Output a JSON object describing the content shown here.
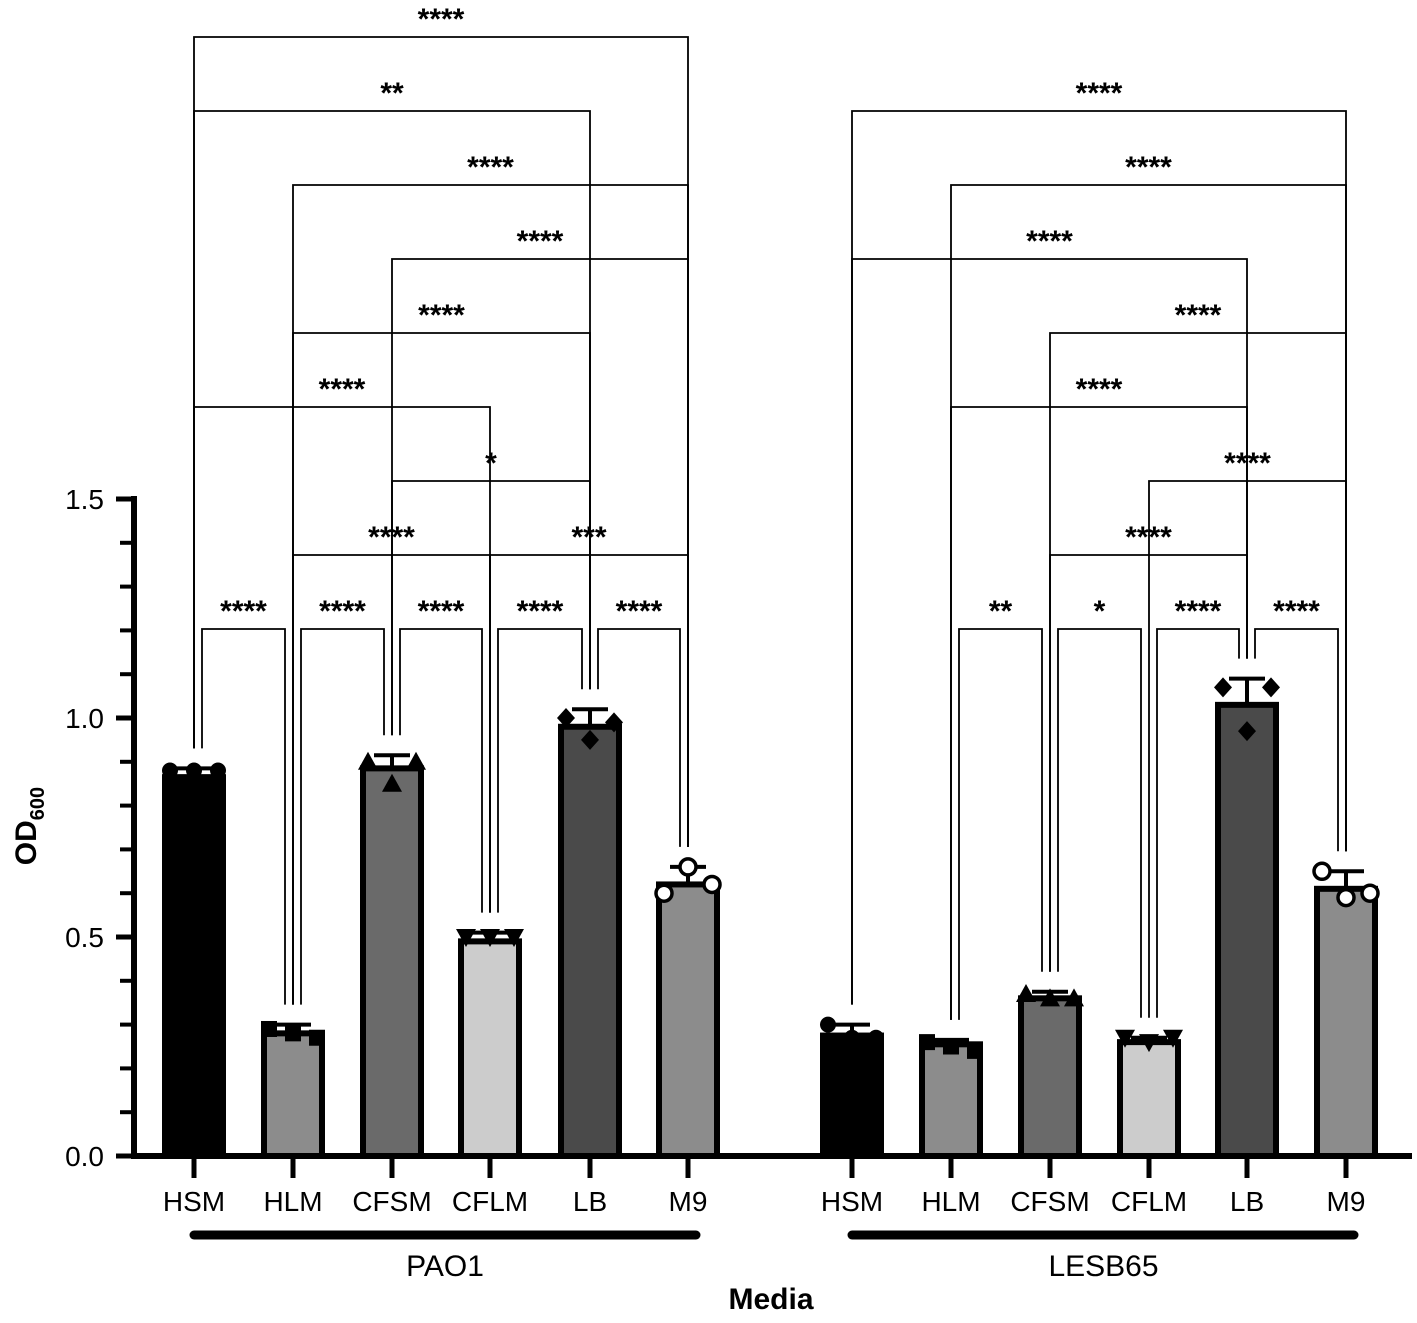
{
  "chart_data": {
    "type": "bar",
    "xlabel": "Media",
    "ylabel": "OD",
    "ylabel_sub": "600",
    "ylim": [
      0,
      1.5
    ],
    "yticks": [
      "0.0",
      "0.5",
      "1.0",
      "1.5"
    ],
    "grid": false,
    "groups": [
      {
        "name": "PAO1",
        "bars": [
          {
            "category": "HSM",
            "value": 0.865,
            "sd": 0.02,
            "color": "#000000",
            "marker": "circle",
            "points": [
              0.88,
              0.88,
              0.88
            ]
          },
          {
            "category": "HLM",
            "value": 0.28,
            "sd": 0.02,
            "color": "#8c8c8c",
            "marker": "square",
            "points": [
              0.29,
              0.28,
              0.27
            ]
          },
          {
            "category": "CFSM",
            "value": 0.885,
            "sd": 0.03,
            "color": "#6a6a6a",
            "marker": "triangle-up",
            "points": [
              0.9,
              0.85,
              0.9
            ]
          },
          {
            "category": "CFLM",
            "value": 0.49,
            "sd": 0.02,
            "color": "#cccccc",
            "marker": "triangle-down",
            "points": [
              0.5,
              0.5,
              0.5
            ]
          },
          {
            "category": "LB",
            "value": 0.98,
            "sd": 0.04,
            "color": "#4a4a4a",
            "marker": "diamond",
            "points": [
              1.0,
              0.95,
              0.99
            ]
          },
          {
            "category": "M9",
            "value": 0.62,
            "sd": 0.04,
            "color": "#8c8c8c",
            "marker": "circle-open",
            "points": [
              0.6,
              0.66,
              0.62
            ]
          }
        ],
        "comparisons": [
          {
            "from": "HSM",
            "to": "HLM",
            "label": "****"
          },
          {
            "from": "HLM",
            "to": "CFSM",
            "label": "****"
          },
          {
            "from": "CFSM",
            "to": "CFLM",
            "label": "****"
          },
          {
            "from": "CFLM",
            "to": "LB",
            "label": "****"
          },
          {
            "from": "LB",
            "to": "M9",
            "label": "****"
          },
          {
            "from": "HLM",
            "to": "CFLM",
            "label": "****"
          },
          {
            "from": "CFLM",
            "to": "M9",
            "label": "***"
          },
          {
            "from": "CFSM",
            "to": "LB",
            "label": "*"
          },
          {
            "from": "HSM",
            "to": "CFLM",
            "label": "****"
          },
          {
            "from": "HLM",
            "to": "LB",
            "label": "****"
          },
          {
            "from": "CFSM",
            "to": "M9",
            "label": "****"
          },
          {
            "from": "HLM",
            "to": "M9",
            "label": "****"
          },
          {
            "from": "HSM",
            "to": "LB",
            "label": "**"
          },
          {
            "from": "HSM",
            "to": "M9",
            "label": "****"
          }
        ]
      },
      {
        "name": "LESB65",
        "bars": [
          {
            "category": "HSM",
            "value": 0.275,
            "sd": 0.025,
            "color": "#000000",
            "marker": "circle",
            "points": [
              0.3,
              0.27,
              0.27
            ]
          },
          {
            "category": "HLM",
            "value": 0.255,
            "sd": 0.01,
            "color": "#8c8c8c",
            "marker": "square",
            "points": [
              0.26,
              0.25,
              0.24
            ]
          },
          {
            "category": "CFSM",
            "value": 0.36,
            "sd": 0.015,
            "color": "#6a6a6a",
            "marker": "triangle-up",
            "points": [
              0.37,
              0.36,
              0.36
            ]
          },
          {
            "category": "CFLM",
            "value": 0.26,
            "sd": 0.01,
            "color": "#cccccc",
            "marker": "triangle-down",
            "points": [
              0.27,
              0.26,
              0.27
            ]
          },
          {
            "category": "LB",
            "value": 1.03,
            "sd": 0.06,
            "color": "#4a4a4a",
            "marker": "diamond",
            "points": [
              1.07,
              0.97,
              1.07
            ]
          },
          {
            "category": "M9",
            "value": 0.61,
            "sd": 0.04,
            "color": "#8c8c8c",
            "marker": "circle-open",
            "points": [
              0.65,
              0.59,
              0.6
            ]
          }
        ],
        "comparisons": [
          {
            "from": "HLM",
            "to": "CFSM",
            "label": "**"
          },
          {
            "from": "CFSM",
            "to": "CFLM",
            "label": "*"
          },
          {
            "from": "CFLM",
            "to": "LB",
            "label": "****"
          },
          {
            "from": "LB",
            "to": "M9",
            "label": "****"
          },
          {
            "from": "CFSM",
            "to": "LB",
            "label": "****"
          },
          {
            "from": "CFLM",
            "to": "M9",
            "label": "****"
          },
          {
            "from": "HLM",
            "to": "LB",
            "label": "****"
          },
          {
            "from": "CFSM",
            "to": "M9",
            "label": "****"
          },
          {
            "from": "HSM",
            "to": "LB",
            "label": "****"
          },
          {
            "from": "HLM",
            "to": "M9",
            "label": "****"
          },
          {
            "from": "HSM",
            "to": "M9",
            "label": "****"
          }
        ]
      }
    ]
  }
}
